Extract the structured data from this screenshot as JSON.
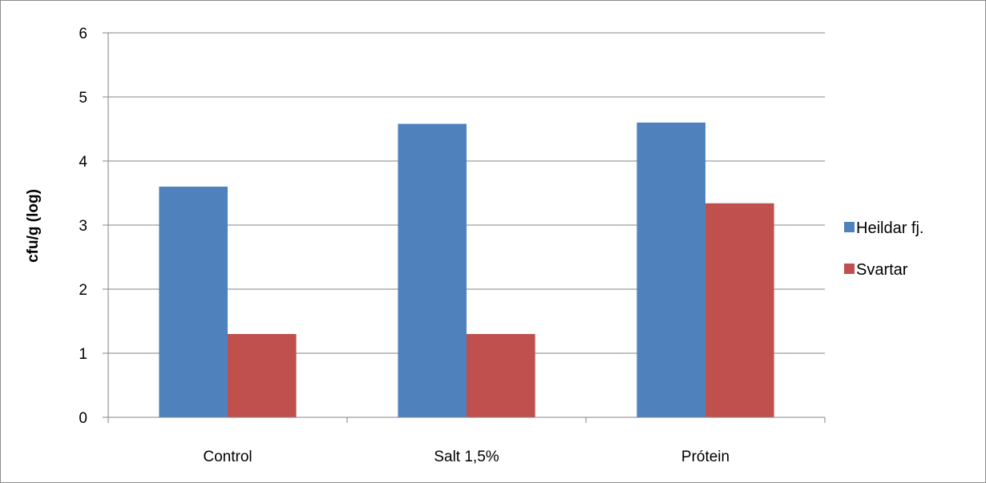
{
  "chart_data": {
    "type": "bar",
    "title": "",
    "xlabel": "",
    "ylabel": "cfu/g (log)",
    "ylim": [
      0,
      6
    ],
    "yticks": [
      "0",
      "1",
      "2",
      "3",
      "4",
      "5",
      "6"
    ],
    "categories": [
      "Control",
      "Salt 1,5%",
      "Prótein"
    ],
    "series": [
      {
        "name": "Heildar fj.",
        "color": "#4f81bd",
        "values": [
          3.6,
          4.58,
          4.6
        ]
      },
      {
        "name": "Svartar",
        "color": "#c0504d",
        "values": [
          1.3,
          1.3,
          3.34
        ]
      }
    ],
    "grid": true,
    "legend": "right"
  }
}
